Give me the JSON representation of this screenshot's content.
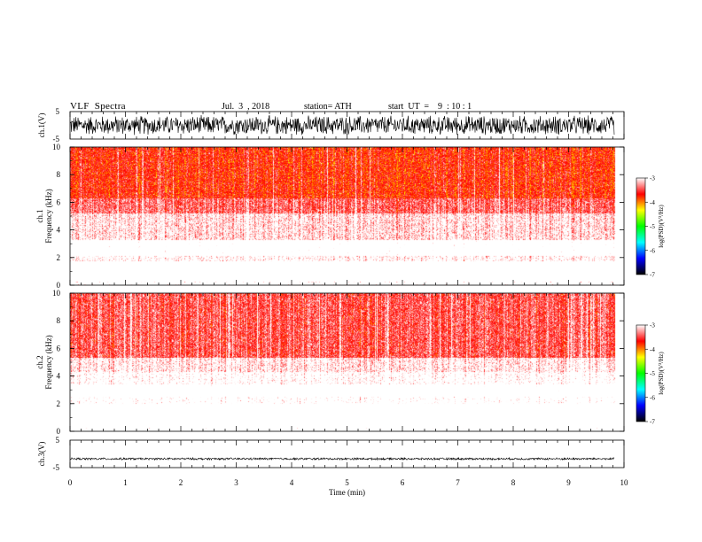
{
  "header": {
    "title": "VLF  Spectra",
    "date": "Jul.  3  , 2018",
    "station": "station= ATH",
    "start": "start  UT  =    9  : 10 : 1"
  },
  "chart_data": [
    {
      "type": "line",
      "panel": "channel-1-waveform",
      "ylabel": "ch.1(V)",
      "ylim": [
        -5,
        5
      ],
      "y_ticks": [
        "5",
        "-5"
      ],
      "xlim": [
        0,
        10
      ],
      "data_end_min": 9.83,
      "amplitude_v": 3.5
    },
    {
      "type": "heatmap",
      "panel": "channel-1-spectrogram",
      "ylabel_lines": [
        "ch.1",
        "Frequency  (kHz)"
      ],
      "ylim": [
        0,
        10
      ],
      "y_ticks": [
        "0",
        "2",
        "4",
        "6",
        "8",
        "10"
      ],
      "xlim": [
        0,
        10
      ],
      "data_end_min": 9.83,
      "bands": [
        {
          "f": [
            0.0,
            0.3
          ],
          "level": 4.3
        },
        {
          "f": [
            0.3,
            1.0
          ],
          "level": 4.7
        },
        {
          "f": [
            1.0,
            1.7
          ],
          "level": 5.0
        },
        {
          "f": [
            1.7,
            2.1
          ],
          "level": 4.1
        },
        {
          "f": [
            2.1,
            3.3
          ],
          "level": 4.55
        },
        {
          "f": [
            3.3,
            5.2
          ],
          "level": 3.95
        },
        {
          "f": [
            5.2,
            6.3
          ],
          "level": 3.6
        },
        {
          "f": [
            6.3,
            10.0
          ],
          "level": 3.3
        }
      ]
    },
    {
      "type": "heatmap",
      "panel": "channel-2-spectrogram",
      "ylabel_lines": [
        "ch.2",
        "Frequency  (kHz)"
      ],
      "ylim": [
        0,
        10
      ],
      "y_ticks": [
        "0",
        "2",
        "4",
        "6",
        "8",
        "10"
      ],
      "xlim": [
        0,
        10
      ],
      "data_end_min": 9.83,
      "bands": [
        {
          "f": [
            0.0,
            0.3
          ],
          "level": 4.5
        },
        {
          "f": [
            0.3,
            1.0
          ],
          "level": 4.75
        },
        {
          "f": [
            1.0,
            2.0
          ],
          "level": 5.0
        },
        {
          "f": [
            2.0,
            2.5
          ],
          "level": 4.3
        },
        {
          "f": [
            2.5,
            3.4
          ],
          "level": 4.7
        },
        {
          "f": [
            3.4,
            4.3
          ],
          "level": 4.2
        },
        {
          "f": [
            4.3,
            5.3
          ],
          "level": 4.0
        },
        {
          "f": [
            5.3,
            10.0
          ],
          "level": 3.55
        }
      ]
    },
    {
      "type": "line",
      "panel": "channel-3-waveform",
      "ylabel": "ch.3(V)",
      "ylim": [
        -5,
        5
      ],
      "y_ticks": [
        "5",
        "-5"
      ],
      "xlim": [
        0,
        10
      ],
      "data_end_min": 9.83,
      "amplitude_v": 0.4,
      "offset_v": -1.8,
      "xlabel": "Time  (min)",
      "x_ticks": [
        "0",
        "1",
        "2",
        "3",
        "4",
        "5",
        "6",
        "7",
        "8",
        "9",
        "10"
      ]
    }
  ],
  "colorbar": {
    "label": "log(PSD)(V²/Hz)",
    "range": [
      -7,
      -3
    ],
    "ticks": [
      "-3",
      "-4",
      "-5",
      "-6",
      "-7"
    ],
    "stops": [
      "#000000",
      "#0000ff",
      "#00ffff",
      "#00ff00",
      "#ffff00",
      "#ff0000",
      "#ffffff"
    ]
  }
}
